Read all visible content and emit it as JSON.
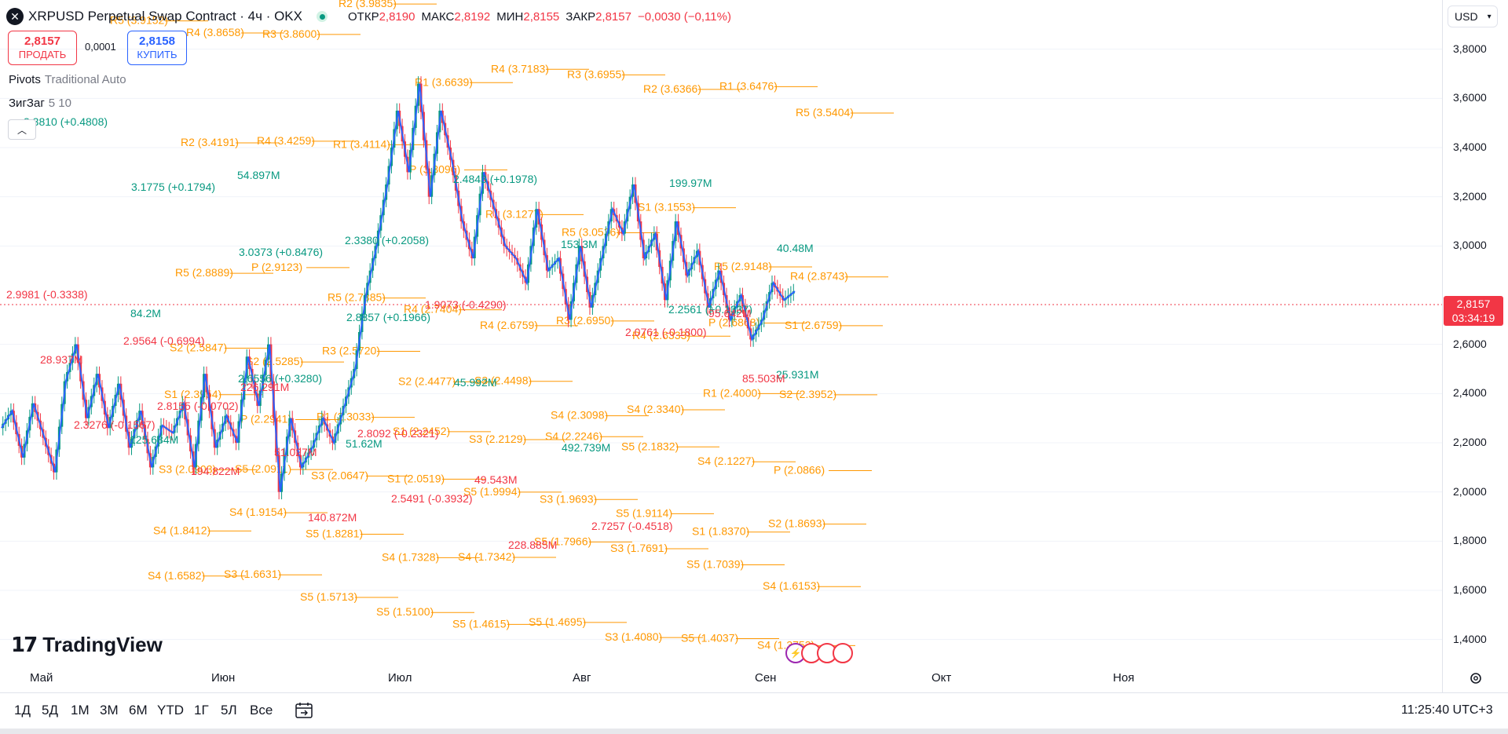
{
  "symbol": {
    "logo_icon": "xrp-logo-icon",
    "title": "XRPUSD Perpetual Swap Contract · 4ч · OKX",
    "ohlc": [
      {
        "key": "ОТКР",
        "value": "2,8190"
      },
      {
        "key": "МАКС",
        "value": "2,8192"
      },
      {
        "key": "МИН",
        "value": "2,8155"
      },
      {
        "key": "ЗАКР",
        "value": "2,8157"
      }
    ],
    "change": "−0,0030 (−0,11%)"
  },
  "trade": {
    "sell_price": "2,8157",
    "sell_label": "ПРОДАТЬ",
    "spread": "0,0001",
    "buy_price": "2,8158",
    "buy_label": "КУПИТЬ"
  },
  "indicators": [
    {
      "name": "Pivots",
      "params": "Traditional Auto"
    },
    {
      "name": "ЗигЗаг",
      "params": "5 10"
    }
  ],
  "currency": "USD",
  "price_axis": {
    "ticks": [
      "3,8000",
      "3,6000",
      "3,4000",
      "3,2000",
      "3,0000",
      "2,6000",
      "2,4000",
      "2,2000",
      "2,0000",
      "1,8000",
      "1,6000",
      "1,4000"
    ],
    "last_price": "2,8157",
    "countdown": "03:34:19"
  },
  "time_axis": [
    "Май",
    "Июн",
    "Июл",
    "Авг",
    "Сен",
    "Окт",
    "Ноя"
  ],
  "ranges": [
    "1Д",
    "5Д",
    "1М",
    "3М",
    "6М",
    "YTD",
    "1Г",
    "5Л",
    "Все"
  ],
  "clock": "11:25:40 UTC+3",
  "brand": "TradingView",
  "colors": {
    "pivot": "#ff9800",
    "up": "#089981",
    "down": "#f23645",
    "zigzag": "#2962ff",
    "accent": "#2962ff"
  },
  "chart_data": {
    "type": "line",
    "title": "XRPUSD Perpetual Swap Contract · 4ч · OKX",
    "xlabel": "",
    "ylabel": "",
    "ylim": [
      1.3,
      4.0
    ],
    "x_ticks": [
      "Май",
      "Июн",
      "Июл",
      "Авг",
      "Сен",
      "Окт",
      "Ноя"
    ],
    "series": [
      {
        "values": [
          2.26,
          2.33,
          2.14,
          2.36,
          2.22,
          2.08,
          2.45,
          2.6,
          2.3,
          2.48,
          2.26,
          2.44,
          2.18,
          2.33,
          2.1,
          2.27,
          2.24,
          2.36,
          2.1,
          2.48,
          2.18,
          2.31,
          2.2,
          2.55,
          2.35,
          2.6,
          2.0,
          2.3,
          2.1,
          2.18,
          2.3,
          2.2,
          2.35,
          2.5,
          2.8,
          3.0,
          3.25,
          3.55,
          3.3,
          3.66,
          3.2,
          3.55,
          3.35,
          3.1,
          2.95,
          3.3,
          3.15,
          3.0,
          2.95,
          2.85,
          3.15,
          2.9,
          2.95,
          2.7,
          3.0,
          2.75,
          2.95,
          3.15,
          3.05,
          3.25,
          2.95,
          3.05,
          2.78,
          3.1,
          2.88,
          2.98,
          2.75,
          2.9,
          2.7,
          2.8,
          2.62,
          2.7,
          2.85,
          2.78,
          2.8157
        ]
      }
    ],
    "pivot_labels": [
      "R5 (3.9152)",
      "R4 (3.8658)",
      "R3 (3.8600)",
      "R2 (3.9835)",
      "R1 (3.6639)",
      "R4 (3.7183)",
      "R3 (3.6955)",
      "R2 (3.6366)",
      "R1 (3.6476)",
      "R5 (3.5404)",
      "R2 (3.4191)",
      "R4 (3.4259)",
      "R1 (3.4114)",
      "P (3.3096)",
      "R1 (3.1277)",
      "R5 (3.0536)",
      "S1 (3.1553)",
      "R5 (2.9148)",
      "R4 (2.8743)",
      "R5 (2.8889)",
      "P (2.9123)",
      "R5 (2.7885)",
      "R4 (2.7404)",
      "R4 (2.6759)",
      "R3 (2.6950)",
      "R4 (2.6333)",
      "P (2.6868)",
      "S1 (2.6759)",
      "S2 (2.5847)",
      "S2 (2.5285)",
      "R3 (2.5720)",
      "S2 (2.4477)",
      "S3 (2.4498)",
      "S4 (2.3098)",
      "S4 (2.3340)",
      "R1 (2.4000)",
      "S2 (2.3952)",
      "S1 (2.3954)",
      "P (2.2941)",
      "R1 (2.3033)",
      "S1 (2.2452)",
      "S3 (2.2129)",
      "S4 (2.2246)",
      "S5 (2.1832)",
      "S4 (2.1227)",
      "P (2.0866)",
      "S3 (2.0903)",
      "S5 (2.0911)",
      "S3 (2.0647)",
      "S1 (2.0519)",
      "S5 (1.9994)",
      "S3 (1.9693)",
      "S5 (1.9114)",
      "S1 (1.8370)",
      "S2 (1.8693)",
      "S4 (1.8412)",
      "S4 (1.9154)",
      "S5 (1.8281)",
      "S4 (1.7328)",
      "S4 (1.7342)",
      "S5 (1.7966)",
      "S3 (1.7691)",
      "S5 (1.7039)",
      "S4 (1.6153)",
      "S4 (1.6582)",
      "S3 (1.6631)",
      "S5 (1.5713)",
      "S5 (1.5100)",
      "S5 (1.4615)",
      "S5 (1.4695)",
      "S3 (1.4080)",
      "S5 (1.4037)",
      "S4 (1.3753)"
    ],
    "zigzag_labels_up": [
      "3.3810 (+0.4808)",
      "3.1775 (+0.1794)",
      "3.0373 (+0.8476)",
      "2.8857 (+0.1966)",
      "45.992M",
      "492.739M",
      "199.97M",
      "40.48M",
      "84.2M",
      "2.6556 (+0.3280)",
      "51.62M",
      "2.4843 (+0.1978)",
      "153.3M",
      "2.2561 (+0.1337)",
      "25.931M",
      "125.684M",
      "54.897M",
      "2.3380 (+0.2058)"
    ],
    "zigzag_labels_down": [
      "2.9981 (-0.3338)",
      "2.9564 (-0.6994)",
      "226.291M",
      "2.8092 (-0.2321)",
      "49.543M",
      "2.7257 (-0.4518)",
      "95.642M",
      "28.937M",
      "2.8155 (-0.0702)",
      "51.027M",
      "2.5491 (-0.3932)",
      "228.885M",
      "2.0761 (-0.1800)",
      "85.503M",
      "2.3276 (-0.1567)",
      "194.822M",
      "140.872M",
      "1.9073 (-0.4290)"
    ]
  }
}
